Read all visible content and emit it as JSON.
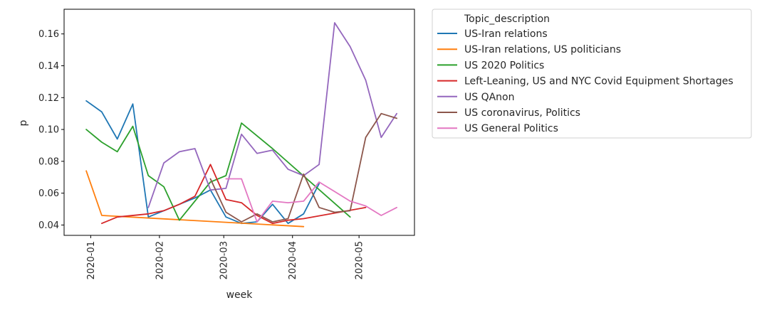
{
  "chart_data": {
    "type": "line",
    "title": "",
    "xlabel": "week",
    "ylabel": "p",
    "x_ticks": [
      "2020-01",
      "2020-02",
      "2020-03",
      "2020-04",
      "2020-05"
    ],
    "y_ticks": [
      "0.04",
      "0.06",
      "0.08",
      "0.10",
      "0.12",
      "0.14",
      "0.16"
    ],
    "xlim": [
      "2019-12-20",
      "2020-05-26"
    ],
    "ylim": [
      0.0335,
      0.1755
    ],
    "grid": false,
    "legend": {
      "title": "Topic_description",
      "placement": "outside-right-top"
    },
    "series": [
      {
        "name": "US-Iran relations",
        "color": "#1f77b4",
        "points": [
          [
            "2019-12-30",
            0.118
          ],
          [
            "2020-01-06",
            0.111
          ],
          [
            "2020-01-13",
            0.094
          ],
          [
            "2020-01-20",
            0.116
          ],
          [
            "2020-01-27",
            0.045
          ],
          [
            "2020-02-03",
            0.049
          ],
          [
            "2020-02-10",
            0.053
          ],
          [
            "2020-02-17",
            0.057
          ],
          [
            "2020-02-24",
            0.062
          ],
          [
            "2020-03-02",
            0.045
          ],
          [
            "2020-03-09",
            0.041
          ],
          [
            "2020-03-16",
            0.042
          ],
          [
            "2020-03-23",
            0.053
          ],
          [
            "2020-03-30",
            0.041
          ],
          [
            "2020-04-06",
            0.047
          ],
          [
            "2020-04-13",
            0.066
          ]
        ]
      },
      {
        "name": "US-Iran relations, US politicians",
        "color": "#ff7f0e",
        "points": [
          [
            "2019-12-30",
            0.074
          ],
          [
            "2020-01-06",
            0.046
          ],
          [
            "2020-04-06",
            0.039
          ]
        ]
      },
      {
        "name": "US 2020 Politics",
        "color": "#2ca02c",
        "points": [
          [
            "2019-12-30",
            0.1
          ],
          [
            "2020-01-06",
            0.092
          ],
          [
            "2020-01-13",
            0.086
          ],
          [
            "2020-01-20",
            0.102
          ],
          [
            "2020-01-27",
            0.071
          ],
          [
            "2020-02-03",
            0.064
          ],
          [
            "2020-02-10",
            0.043
          ],
          [
            "2020-02-24",
            0.067
          ],
          [
            "2020-03-02",
            0.071
          ],
          [
            "2020-03-09",
            0.104
          ],
          [
            "2020-03-23",
            0.088
          ],
          [
            "2020-04-27",
            0.045
          ]
        ]
      },
      {
        "name": "Left-Leaning, US and NYC Covid Equipment Shortages",
        "color": "#d62728",
        "points": [
          [
            "2020-01-06",
            0.041
          ],
          [
            "2020-01-13",
            0.045
          ],
          [
            "2020-01-27",
            0.047
          ],
          [
            "2020-02-03",
            0.049
          ],
          [
            "2020-02-10",
            0.053
          ],
          [
            "2020-02-17",
            0.058
          ],
          [
            "2020-02-24",
            0.078
          ],
          [
            "2020-03-02",
            0.056
          ],
          [
            "2020-03-09",
            0.054
          ],
          [
            "2020-03-16",
            0.046
          ],
          [
            "2020-03-23",
            0.041
          ],
          [
            "2020-03-30",
            0.043
          ],
          [
            "2020-04-06",
            0.044
          ],
          [
            "2020-05-04",
            0.051
          ]
        ]
      },
      {
        "name": "US QAnon",
        "color": "#9467bd",
        "points": [
          [
            "2020-01-27",
            0.051
          ],
          [
            "2020-02-03",
            0.079
          ],
          [
            "2020-02-10",
            0.086
          ],
          [
            "2020-02-17",
            0.088
          ],
          [
            "2020-02-24",
            0.062
          ],
          [
            "2020-03-02",
            0.063
          ],
          [
            "2020-03-09",
            0.097
          ],
          [
            "2020-03-16",
            0.085
          ],
          [
            "2020-03-23",
            0.087
          ],
          [
            "2020-03-30",
            0.075
          ],
          [
            "2020-04-06",
            0.071
          ],
          [
            "2020-04-13",
            0.078
          ],
          [
            "2020-04-20",
            0.167
          ],
          [
            "2020-04-27",
            0.152
          ],
          [
            "2020-05-04",
            0.131
          ],
          [
            "2020-05-11",
            0.095
          ],
          [
            "2020-05-18",
            0.11
          ]
        ]
      },
      {
        "name": "US coronavirus, Politics",
        "color": "#8c564b",
        "points": [
          [
            "2020-02-24",
            0.069
          ],
          [
            "2020-03-02",
            0.048
          ],
          [
            "2020-03-09",
            0.042
          ],
          [
            "2020-03-16",
            0.047
          ],
          [
            "2020-03-23",
            0.042
          ],
          [
            "2020-03-30",
            0.044
          ],
          [
            "2020-04-06",
            0.072
          ],
          [
            "2020-04-13",
            0.051
          ],
          [
            "2020-04-20",
            0.048
          ],
          [
            "2020-04-27",
            0.049
          ],
          [
            "2020-05-04",
            0.095
          ],
          [
            "2020-05-11",
            0.11
          ],
          [
            "2020-05-18",
            0.107
          ]
        ]
      },
      {
        "name": "US General Politics",
        "color": "#e377c2",
        "points": [
          [
            "2020-03-02",
            0.069
          ],
          [
            "2020-03-09",
            0.069
          ],
          [
            "2020-03-16",
            0.042
          ],
          [
            "2020-03-23",
            0.055
          ],
          [
            "2020-03-30",
            0.054
          ],
          [
            "2020-04-06",
            0.055
          ],
          [
            "2020-04-13",
            0.067
          ],
          [
            "2020-04-20",
            0.061
          ],
          [
            "2020-04-27",
            0.055
          ],
          [
            "2020-05-04",
            0.052
          ],
          [
            "2020-05-11",
            0.046
          ],
          [
            "2020-05-18",
            0.051
          ]
        ]
      }
    ]
  }
}
